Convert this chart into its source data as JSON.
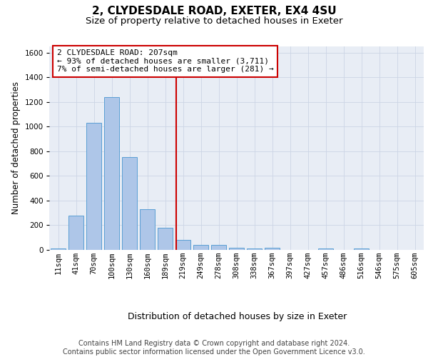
{
  "title": "2, CLYDESDALE ROAD, EXETER, EX4 4SU",
  "subtitle": "Size of property relative to detached houses in Exeter",
  "xlabel": "Distribution of detached houses by size in Exeter",
  "ylabel": "Number of detached properties",
  "bar_values": [
    10,
    280,
    1030,
    1240,
    755,
    330,
    180,
    80,
    42,
    38,
    20,
    14,
    20,
    2,
    0,
    12,
    0,
    12,
    0,
    0,
    0
  ],
  "bar_color": "#aec6e8",
  "bar_edge_color": "#5a9fd4",
  "vline_color": "#cc0000",
  "annotation_text": "2 CLYDESDALE ROAD: 207sqm\n← 93% of detached houses are smaller (3,711)\n7% of semi-detached houses are larger (281) →",
  "annotation_box_color": "#cc0000",
  "ylim": [
    0,
    1650
  ],
  "yticks": [
    0,
    200,
    400,
    600,
    800,
    1000,
    1200,
    1400,
    1600
  ],
  "xtick_labels": [
    "11sqm",
    "41sqm",
    "70sqm",
    "100sqm",
    "130sqm",
    "160sqm",
    "189sqm",
    "219sqm",
    "249sqm",
    "278sqm",
    "308sqm",
    "338sqm",
    "367sqm",
    "397sqm",
    "427sqm",
    "457sqm",
    "486sqm",
    "516sqm",
    "546sqm",
    "575sqm",
    "605sqm"
  ],
  "grid_color": "#ccd5e5",
  "plot_bg_color": "#e8edf5",
  "footer_text": "Contains HM Land Registry data © Crown copyright and database right 2024.\nContains public sector information licensed under the Open Government Licence v3.0.",
  "title_fontsize": 11,
  "subtitle_fontsize": 9.5,
  "xlabel_fontsize": 9,
  "ylabel_fontsize": 8.5,
  "tick_fontsize": 7.5,
  "annot_fontsize": 8,
  "footer_fontsize": 7
}
